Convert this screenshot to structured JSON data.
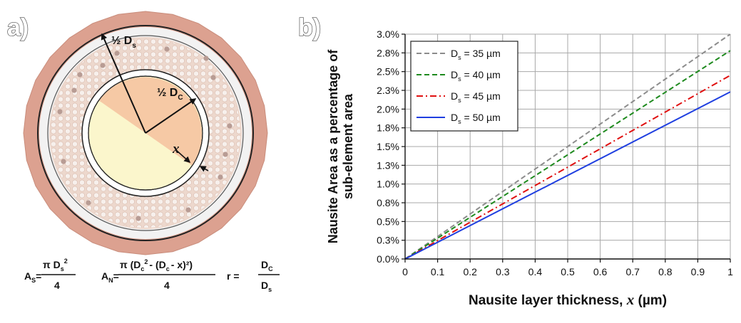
{
  "panel_a": {
    "label": "a)",
    "radius_label_s": {
      "prefix": "½ D",
      "sub": "s"
    },
    "radius_label_c": {
      "prefix": "½ D",
      "sub": "C"
    },
    "thickness_label": "x",
    "formula_as": {
      "lhs": "A",
      "lhs_sub": "S",
      "eq": "=",
      "num": "π D",
      "num_sub": "s",
      "num_sup": "2",
      "den": "4"
    },
    "formula_an": {
      "lhs": "A",
      "lhs_sub": "N",
      "eq": "=",
      "num_1": "π (D",
      "num_sub_1": "c",
      "num_sup_1": "2",
      "num_2": "- (D",
      "num_sub_2": "c",
      "num_3": "- x)²)",
      "den": "4"
    },
    "formula_r": {
      "lhs": "r =",
      "num": "D",
      "num_sub": "C",
      "den": "D",
      "den_sub": "s"
    },
    "colors": {
      "outer_ring": "#dca190",
      "sheath": "#f2f2f2",
      "filament_zone": "#edd8cd",
      "core_light": "#fbf6cc",
      "core_orange": "#f6c9a5"
    }
  },
  "panel_b": {
    "label": "b)",
    "chart_data": {
      "type": "line",
      "xlabel_prefix": "Nausite layer thickness, ",
      "xlabel_var": "x",
      "xlabel_suffix": " (µm)",
      "ylabel_line1": "Nausite Area as a percentage of",
      "ylabel_line2": "sub-element area",
      "xlim": [
        0,
        1
      ],
      "ylim": [
        0,
        3.0
      ],
      "x_ticks": [
        "0",
        "0.1",
        "0.2",
        "0.3",
        "0.4",
        "0.5",
        "0.6",
        "0.7",
        "0.8",
        "0.9",
        "1"
      ],
      "y_ticks": [
        "0.0%",
        "0.3%",
        "0.5%",
        "0.8%",
        "1.0%",
        "1.3%",
        "1.5%",
        "1.8%",
        "2.0%",
        "2.3%",
        "2.5%",
        "2.8%",
        "3.0%"
      ],
      "grid": true,
      "legend_position": "top-left",
      "series": [
        {
          "name_prefix": "D",
          "name_sub": "s",
          "name_suffix": " = 35 µm",
          "color": "#8c8c8c",
          "dash": "dashed",
          "x": [
            0,
            1
          ],
          "y": [
            0,
            3.0
          ]
        },
        {
          "name_prefix": "D",
          "name_sub": "s",
          "name_suffix": " = 40 µm",
          "color": "#1e8a1e",
          "dash": "dashed",
          "x": [
            0,
            1
          ],
          "y": [
            0,
            2.78
          ]
        },
        {
          "name_prefix": "D",
          "name_sub": "s",
          "name_suffix": " = 45 µm",
          "color": "#e01010",
          "dash": "dashdot",
          "x": [
            0,
            1
          ],
          "y": [
            0,
            2.45
          ]
        },
        {
          "name_prefix": "D",
          "name_sub": "s",
          "name_suffix": " = 50 µm",
          "color": "#1f3fe0",
          "dash": "solid",
          "x": [
            0,
            1
          ],
          "y": [
            0,
            2.23
          ]
        }
      ]
    }
  }
}
